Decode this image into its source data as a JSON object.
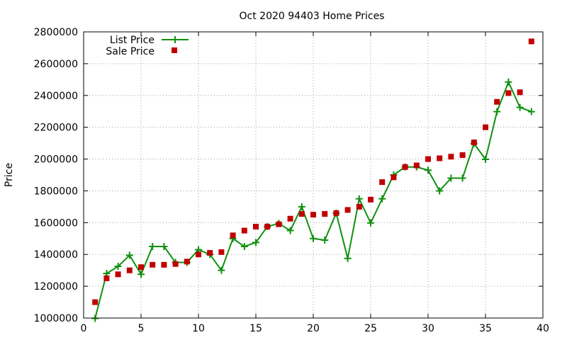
{
  "chart_data": {
    "type": "line",
    "title": "Oct 2020 94403 Home Prices",
    "xlabel": "",
    "ylabel": "Price",
    "xlim": [
      0,
      40
    ],
    "ylim": [
      1000000,
      2800000
    ],
    "xticks": [
      0,
      5,
      10,
      15,
      20,
      25,
      30,
      35,
      40
    ],
    "yticks": [
      1000000,
      1200000,
      1400000,
      1600000,
      1800000,
      2000000,
      2200000,
      2400000,
      2600000,
      2800000
    ],
    "grid": true,
    "legend_position": "top-left",
    "series": [
      {
        "name": "List Price",
        "style": "line-with-plus-markers",
        "color": "#109010",
        "x": [
          1,
          2,
          3,
          4,
          5,
          6,
          7,
          8,
          9,
          10,
          11,
          12,
          13,
          14,
          15,
          16,
          17,
          18,
          19,
          20,
          21,
          22,
          23,
          24,
          25,
          26,
          27,
          28,
          29,
          30,
          31,
          32,
          33,
          34,
          35,
          36,
          37,
          38,
          39
        ],
        "y": [
          998000,
          1280000,
          1325000,
          1395000,
          1275000,
          1450000,
          1450000,
          1350000,
          1350000,
          1430000,
          1400000,
          1300000,
          1500000,
          1450000,
          1475000,
          1575000,
          1595000,
          1550000,
          1700000,
          1500000,
          1490000,
          1660000,
          1375000,
          1750000,
          1598000,
          1750000,
          1900000,
          1950000,
          1950000,
          1930000,
          1800000,
          1880000,
          1880000,
          2098000,
          1998000,
          2298000,
          2485000,
          2325000,
          2298000
        ]
      },
      {
        "name": "Sale Price",
        "style": "square-markers",
        "color": "#c00000",
        "x": [
          1,
          2,
          3,
          4,
          5,
          6,
          7,
          8,
          9,
          10,
          11,
          12,
          13,
          14,
          15,
          16,
          17,
          18,
          19,
          20,
          21,
          22,
          23,
          24,
          25,
          26,
          27,
          28,
          29,
          30,
          31,
          32,
          33,
          34,
          35,
          36,
          37,
          38,
          39
        ],
        "y": [
          1100000,
          1250000,
          1275000,
          1300000,
          1320000,
          1335000,
          1335000,
          1340000,
          1355000,
          1400000,
          1410000,
          1415000,
          1520000,
          1550000,
          1575000,
          1575000,
          1590000,
          1625000,
          1655000,
          1650000,
          1655000,
          1660000,
          1680000,
          1700000,
          1745000,
          1855000,
          1885000,
          1950000,
          1960000,
          2000000,
          2005000,
          2015000,
          2025000,
          2105000,
          2200000,
          2360000,
          2415000,
          2420000,
          2740000
        ]
      }
    ]
  }
}
